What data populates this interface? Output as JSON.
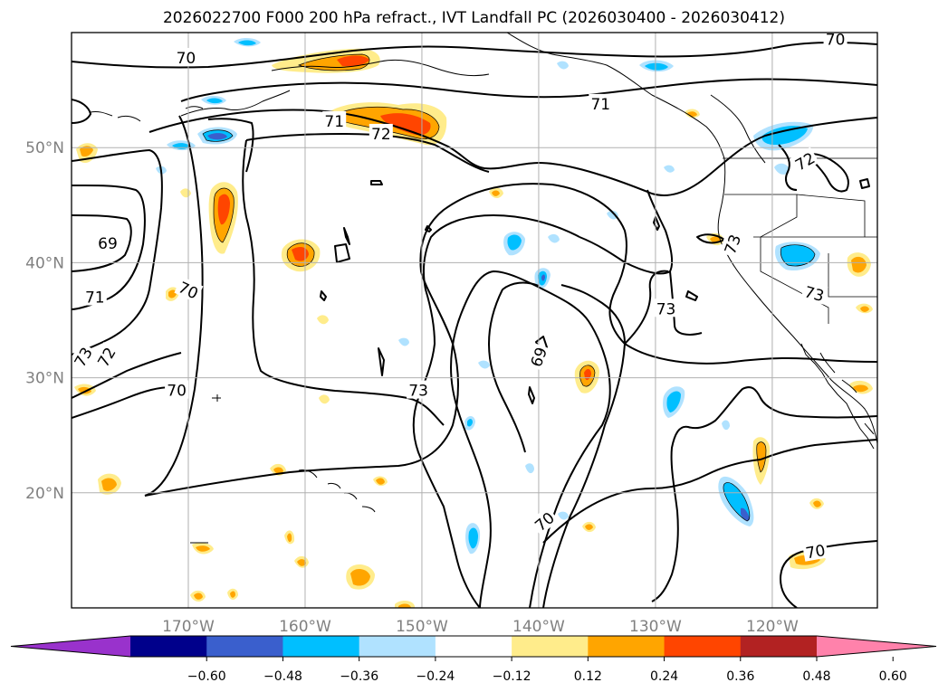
{
  "title": "2026022700 F000 200 hPa refract., IVT Landfall PC (2026030400 - 2026030412)",
  "map": {
    "projection": "platecarree",
    "lon_range": [
      -180,
      -111
    ],
    "lat_range": [
      10,
      60
    ],
    "lat_ticks": [
      {
        "value": 50,
        "label": "50°N"
      },
      {
        "value": 40,
        "label": "40°N"
      },
      {
        "value": 30,
        "label": "30°N"
      },
      {
        "value": 20,
        "label": "20°N"
      }
    ],
    "lon_ticks": [
      {
        "value": -170,
        "label": "170°W"
      },
      {
        "value": -160,
        "label": "160°W"
      },
      {
        "value": -150,
        "label": "150°W"
      },
      {
        "value": -140,
        "label": "140°W"
      },
      {
        "value": -130,
        "label": "130°W"
      },
      {
        "value": -120,
        "label": "120°W"
      }
    ],
    "contour_labels": [
      {
        "text": "70",
        "lon": -170.2,
        "lat": 57.8,
        "rot": 0
      },
      {
        "text": "71",
        "lon": -157.5,
        "lat": 52.3,
        "rot": 0
      },
      {
        "text": "72",
        "lon": -153.5,
        "lat": 51.2,
        "rot": 0
      },
      {
        "text": "71",
        "lon": -134.7,
        "lat": 53.8,
        "rot": 0
      },
      {
        "text": "70",
        "lon": -114.6,
        "lat": 59.4,
        "rot": 0
      },
      {
        "text": "72",
        "lon": -117.2,
        "lat": 48.8,
        "rot": -30
      },
      {
        "text": "73",
        "lon": -123.4,
        "lat": 41.6,
        "rot": -70
      },
      {
        "text": "73",
        "lon": -116.4,
        "lat": 37.3,
        "rot": 15
      },
      {
        "text": "73",
        "lon": -129.1,
        "lat": 36.0,
        "rot": 0
      },
      {
        "text": "69",
        "lon": -176.9,
        "lat": 41.7,
        "rot": 0
      },
      {
        "text": "71",
        "lon": -178.0,
        "lat": 37.0,
        "rot": 0
      },
      {
        "text": "70",
        "lon": -170.0,
        "lat": 37.6,
        "rot": 25
      },
      {
        "text": "73",
        "lon": -179.0,
        "lat": 31.8,
        "rot": -60
      },
      {
        "text": "72",
        "lon": -177.0,
        "lat": 31.8,
        "rot": -60
      },
      {
        "text": "70",
        "lon": -171.0,
        "lat": 28.9,
        "rot": 0
      },
      {
        "text": "73",
        "lon": -150.3,
        "lat": 28.9,
        "rot": 0
      },
      {
        "text": "69",
        "lon": -140.0,
        "lat": 31.8,
        "rot": -70
      },
      {
        "text": "70",
        "lon": -139.5,
        "lat": 17.5,
        "rot": -40
      },
      {
        "text": "70",
        "lon": -116.3,
        "lat": 14.9,
        "rot": -10
      }
    ]
  },
  "colorbar": {
    "colors": [
      "#9932cc",
      "#00008b",
      "#3a5fcd",
      "#00bfff",
      "#b0e2ff",
      "#ffffff",
      "#ffec8b",
      "#ffa500",
      "#ff4500",
      "#b22222",
      "#ff82ab"
    ],
    "ticks": [
      "−0.60",
      "−0.48",
      "−0.36",
      "−0.24",
      "−0.12",
      "0.12",
      "0.24",
      "0.36",
      "0.48",
      "0.60"
    ]
  },
  "colors": {
    "grid": "#b0b0b0",
    "contour": "#000000",
    "tick_label": "#808080"
  }
}
